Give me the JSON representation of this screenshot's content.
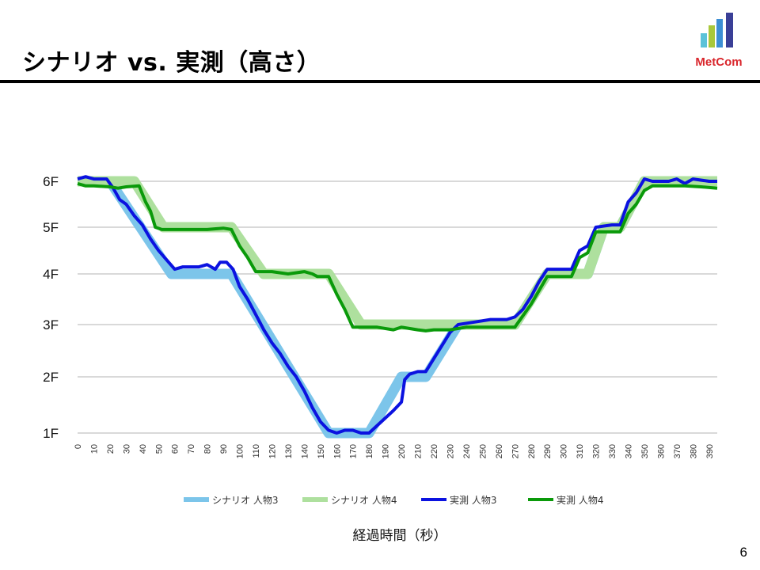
{
  "slide": {
    "title": "シナリオ vs. 実測（高さ）",
    "page_number": "6",
    "logo_text": "MetCom",
    "logo_bar_colors": [
      "#5bc2d8",
      "#a9c83a",
      "#3d8fd4",
      "#3a3f97"
    ]
  },
  "chart_data": {
    "type": "line",
    "title": "",
    "xlabel": "経過時間（秒）",
    "ylabel": "",
    "xlim": [
      0,
      395
    ],
    "x_ticks": [
      0,
      10,
      20,
      30,
      40,
      50,
      60,
      70,
      80,
      90,
      100,
      110,
      120,
      130,
      140,
      150,
      160,
      170,
      180,
      190,
      200,
      210,
      220,
      230,
      240,
      250,
      260,
      270,
      280,
      290,
      300,
      310,
      320,
      330,
      340,
      350,
      360,
      370,
      380,
      390
    ],
    "y_ticks": [
      {
        "label": "1F",
        "value": 1
      },
      {
        "label": "2F",
        "value": 2
      },
      {
        "label": "3F",
        "value": 3
      },
      {
        "label": "4F",
        "value": 4
      },
      {
        "label": "5F",
        "value": 5
      },
      {
        "label": "6F",
        "value": 6
      }
    ],
    "grid": "horizontal",
    "legend_position": "bottom",
    "series": [
      {
        "name": "シナリオ 人物3",
        "color": "#7cc5ea",
        "style": "thick",
        "points": [
          [
            0,
            6
          ],
          [
            20,
            6
          ],
          [
            58,
            4
          ],
          [
            95,
            4
          ],
          [
            155,
            1
          ],
          [
            180,
            1
          ],
          [
            200,
            2
          ],
          [
            215,
            2
          ],
          [
            235,
            3
          ],
          [
            270,
            3
          ],
          [
            290,
            4
          ],
          [
            315,
            4
          ],
          [
            325,
            5
          ],
          [
            335,
            5
          ],
          [
            350,
            6
          ],
          [
            395,
            6
          ]
        ]
      },
      {
        "name": "シナリオ 人物4",
        "color": "#aee09e",
        "style": "thick",
        "points": [
          [
            0,
            6
          ],
          [
            35,
            6
          ],
          [
            53,
            5
          ],
          [
            95,
            5
          ],
          [
            115,
            4
          ],
          [
            155,
            4
          ],
          [
            175,
            3
          ],
          [
            270,
            3
          ],
          [
            290,
            4
          ],
          [
            315,
            4
          ],
          [
            325,
            5
          ],
          [
            335,
            5
          ],
          [
            350,
            6
          ],
          [
            395,
            6
          ]
        ]
      },
      {
        "name": "実測 人物3",
        "color": "#0b12e0",
        "style": "thin",
        "points": [
          [
            0,
            6.05
          ],
          [
            5,
            6.1
          ],
          [
            10,
            6.05
          ],
          [
            18,
            6.05
          ],
          [
            22,
            5.85
          ],
          [
            26,
            5.6
          ],
          [
            30,
            5.5
          ],
          [
            35,
            5.25
          ],
          [
            40,
            5.05
          ],
          [
            45,
            4.75
          ],
          [
            50,
            4.5
          ],
          [
            55,
            4.3
          ],
          [
            60,
            4.1
          ],
          [
            65,
            4.15
          ],
          [
            75,
            4.15
          ],
          [
            80,
            4.2
          ],
          [
            85,
            4.1
          ],
          [
            88,
            4.25
          ],
          [
            92,
            4.25
          ],
          [
            96,
            4.1
          ],
          [
            100,
            3.75
          ],
          [
            105,
            3.5
          ],
          [
            110,
            3.2
          ],
          [
            115,
            2.9
          ],
          [
            120,
            2.65
          ],
          [
            125,
            2.45
          ],
          [
            130,
            2.2
          ],
          [
            135,
            2.0
          ],
          [
            140,
            1.75
          ],
          [
            145,
            1.45
          ],
          [
            150,
            1.2
          ],
          [
            155,
            1.05
          ],
          [
            160,
            1.0
          ],
          [
            165,
            1.05
          ],
          [
            170,
            1.05
          ],
          [
            175,
            1.0
          ],
          [
            180,
            1.0
          ],
          [
            195,
            1.4
          ],
          [
            200,
            1.55
          ],
          [
            202,
            1.95
          ],
          [
            205,
            2.05
          ],
          [
            210,
            2.1
          ],
          [
            215,
            2.1
          ],
          [
            220,
            2.35
          ],
          [
            225,
            2.6
          ],
          [
            230,
            2.85
          ],
          [
            235,
            3.0
          ],
          [
            245,
            3.05
          ],
          [
            255,
            3.1
          ],
          [
            265,
            3.1
          ],
          [
            270,
            3.15
          ],
          [
            275,
            3.3
          ],
          [
            280,
            3.55
          ],
          [
            285,
            3.85
          ],
          [
            290,
            4.1
          ],
          [
            300,
            4.1
          ],
          [
            305,
            4.1
          ],
          [
            310,
            4.5
          ],
          [
            315,
            4.6
          ],
          [
            320,
            5.0
          ],
          [
            330,
            5.05
          ],
          [
            335,
            5.05
          ],
          [
            340,
            5.55
          ],
          [
            345,
            5.75
          ],
          [
            350,
            6.05
          ],
          [
            355,
            6.0
          ],
          [
            365,
            6.0
          ],
          [
            370,
            6.05
          ],
          [
            375,
            5.95
          ],
          [
            380,
            6.05
          ],
          [
            390,
            6.0
          ],
          [
            395,
            6.0
          ]
        ]
      },
      {
        "name": "実測 人物4",
        "color": "#0a9a0a",
        "style": "thin",
        "points": [
          [
            0,
            5.95
          ],
          [
            5,
            5.9
          ],
          [
            10,
            5.9
          ],
          [
            20,
            5.88
          ],
          [
            25,
            5.85
          ],
          [
            30,
            5.88
          ],
          [
            38,
            5.9
          ],
          [
            42,
            5.55
          ],
          [
            45,
            5.35
          ],
          [
            48,
            5.0
          ],
          [
            52,
            4.95
          ],
          [
            60,
            4.95
          ],
          [
            70,
            4.95
          ],
          [
            80,
            4.95
          ],
          [
            90,
            4.98
          ],
          [
            95,
            4.95
          ],
          [
            100,
            4.6
          ],
          [
            105,
            4.35
          ],
          [
            110,
            4.05
          ],
          [
            115,
            4.05
          ],
          [
            120,
            4.05
          ],
          [
            130,
            4.0
          ],
          [
            140,
            4.05
          ],
          [
            145,
            4.0
          ],
          [
            148,
            3.95
          ],
          [
            155,
            3.95
          ],
          [
            160,
            3.6
          ],
          [
            165,
            3.3
          ],
          [
            170,
            2.95
          ],
          [
            175,
            2.95
          ],
          [
            185,
            2.95
          ],
          [
            195,
            2.9
          ],
          [
            200,
            2.95
          ],
          [
            210,
            2.9
          ],
          [
            215,
            2.88
          ],
          [
            220,
            2.9
          ],
          [
            230,
            2.9
          ],
          [
            240,
            2.95
          ],
          [
            250,
            2.95
          ],
          [
            260,
            2.95
          ],
          [
            270,
            2.95
          ],
          [
            280,
            3.4
          ],
          [
            290,
            3.95
          ],
          [
            300,
            3.95
          ],
          [
            305,
            3.95
          ],
          [
            310,
            4.35
          ],
          [
            315,
            4.45
          ],
          [
            320,
            4.9
          ],
          [
            330,
            4.9
          ],
          [
            335,
            4.9
          ],
          [
            340,
            5.3
          ],
          [
            345,
            5.5
          ],
          [
            350,
            5.8
          ],
          [
            355,
            5.9
          ],
          [
            365,
            5.9
          ],
          [
            375,
            5.9
          ],
          [
            385,
            5.88
          ],
          [
            395,
            5.85
          ]
        ]
      }
    ]
  }
}
